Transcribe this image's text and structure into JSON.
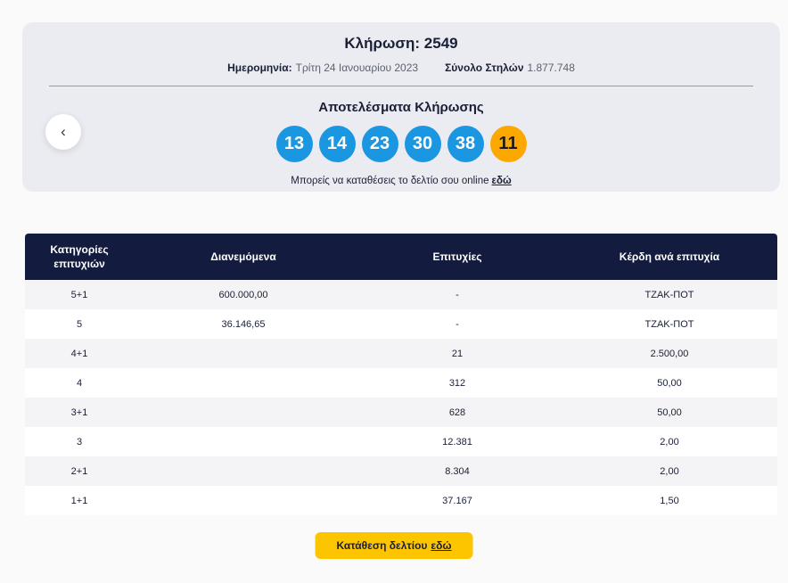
{
  "colors": {
    "navy": "#131c3e",
    "ball_blue": "#1b96e1",
    "bonus_orange": "#fda800",
    "button_yellow": "#fdc500",
    "hero_background": "#eaecf2",
    "row_alternate": "#f4f4f6"
  },
  "hero": {
    "draw_label": "Κλήρωση:",
    "draw_number": "2549",
    "date_label": "Ημερομηνία:",
    "date_value": "Τρίτη 24 Ιανουαρίου 2023",
    "columns_label": "Σύνολο Στηλών",
    "columns_value": "1.877.748",
    "results_title": "Αποτελέσματα Κλήρωσης",
    "numbers": [
      "13",
      "14",
      "23",
      "30",
      "38"
    ],
    "bonus_number": "11",
    "online_text": "Μπορείς να καταθέσεις το δελτίο σου online",
    "online_link": "εδώ",
    "prev_icon": "‹"
  },
  "table": {
    "headers": [
      "Κατηγορίες επιτυχιών",
      "Διανεμόμενα",
      "Επιτυχίες",
      "Κέρδη ανά επιτυχία"
    ],
    "rows": [
      {
        "category": "5+1",
        "distributed": "600.000,00",
        "winners": "-",
        "prize": "ΤΖΑΚ-ΠΟΤ"
      },
      {
        "category": "5",
        "distributed": "36.146,65",
        "winners": "-",
        "prize": "ΤΖΑΚ-ΠΟΤ"
      },
      {
        "category": "4+1",
        "distributed": "",
        "winners": "21",
        "prize": "2.500,00"
      },
      {
        "category": "4",
        "distributed": "",
        "winners": "312",
        "prize": "50,00"
      },
      {
        "category": "3+1",
        "distributed": "",
        "winners": "628",
        "prize": "50,00"
      },
      {
        "category": "3",
        "distributed": "",
        "winners": "12.381",
        "prize": "2,00"
      },
      {
        "category": "2+1",
        "distributed": "",
        "winners": "8.304",
        "prize": "2,00"
      },
      {
        "category": "1+1",
        "distributed": "",
        "winners": "37.167",
        "prize": "1,50"
      }
    ]
  },
  "footer_button": {
    "text": "Κατάθεση δελτίου",
    "link": "εδώ"
  }
}
